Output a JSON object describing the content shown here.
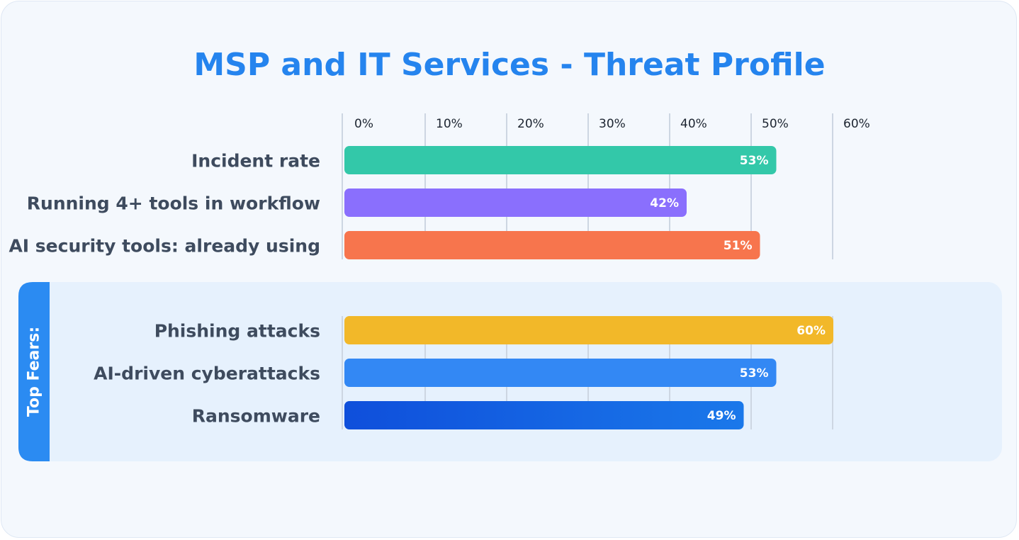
{
  "title": "MSP and IT Services - Threat Profile",
  "chart_data": {
    "type": "bar",
    "orientation": "horizontal",
    "xlim": [
      0,
      60
    ],
    "ticks": [
      "0%",
      "10%",
      "20%",
      "30%",
      "40%",
      "50%",
      "60%"
    ],
    "tick_values": [
      0,
      10,
      20,
      30,
      40,
      50,
      60
    ],
    "groups": [
      {
        "label": "",
        "bars": [
          {
            "category": "Incident rate",
            "value": 53,
            "value_label": "53%",
            "color": "#33c8a9"
          },
          {
            "category": "Running 4+ tools in workflow",
            "value": 42,
            "value_label": "42%",
            "color": "#8a6ffd"
          },
          {
            "category": "AI security tools: already using",
            "value": 51,
            "value_label": "51%",
            "color": "#f7754d"
          }
        ]
      },
      {
        "label": "Top Fears:",
        "bars": [
          {
            "category": "Phishing attacks",
            "value": 60,
            "value_label": "60%",
            "color": "#f2b829"
          },
          {
            "category": "AI-driven cyberattacks",
            "value": 53,
            "value_label": "53%",
            "color": "#3388f4"
          },
          {
            "category": "Ransomware",
            "value": 49,
            "value_label": "49%",
            "color": "#0f4fdb"
          }
        ]
      }
    ],
    "grid": true
  },
  "colors": {
    "title": "#2584ee",
    "section_tab": "#2b8bf2",
    "section_panel": "#e6f1fd",
    "gridline": "#cdd6e2"
  }
}
